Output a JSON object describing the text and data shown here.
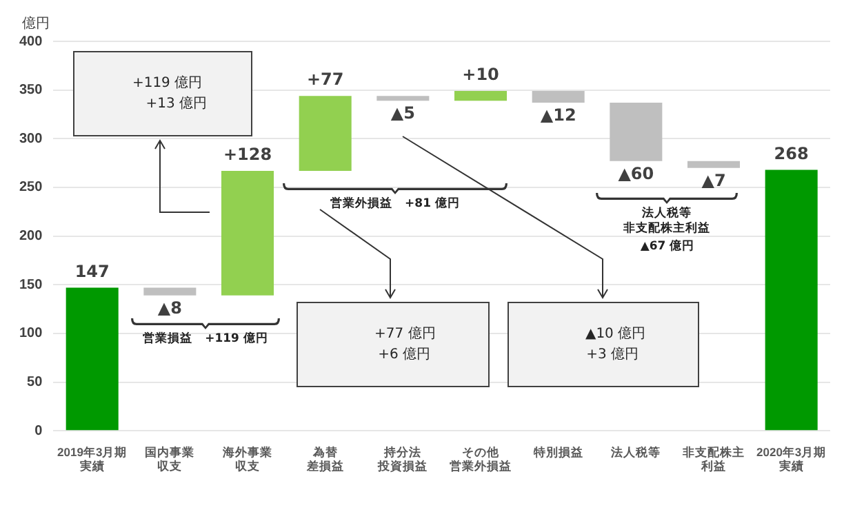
{
  "chart_data": {
    "type": "bar",
    "ylabel": "億円",
    "categories": [
      "2019年3月期実績",
      "国内事業収支",
      "海外事業収支",
      "為替差損益",
      "持分法投資損益",
      "その他営業外損益",
      "特別損益",
      "法人税等",
      "非支配株主利益",
      "2020年3月期実績"
    ],
    "values": [
      147,
      -8,
      128,
      77,
      -5,
      10,
      -12,
      -60,
      -7,
      268
    ],
    "base": [
      0,
      147,
      139,
      267,
      344,
      339,
      349,
      337,
      277,
      0
    ],
    "colors": [
      "#009900",
      "#bfbfbf",
      "#92d050",
      "#92d050",
      "#bfbfbf",
      "#92d050",
      "#bfbfbf",
      "#bfbfbf",
      "#bfbfbf",
      "#009900"
    ],
    "value_labels": [
      "147",
      "▲8",
      "+128",
      "+77",
      "▲5",
      "+10",
      "▲12",
      "▲60",
      "▲7",
      "268"
    ],
    "ylim": [
      0,
      400
    ],
    "yticks": [
      0,
      50,
      100,
      150,
      200,
      250,
      300,
      350,
      400
    ],
    "grid": "y",
    "legend": false,
    "annotations": [
      "営業損益　+119 億円",
      "営業外損益　+81 億円",
      "法人税等非支配株主利益",
      "▲67 億円",
      "+119 億円",
      "+13 億円",
      "+77 億円",
      "+6 億円",
      "▲10 億円",
      "+3 億円"
    ]
  }
}
